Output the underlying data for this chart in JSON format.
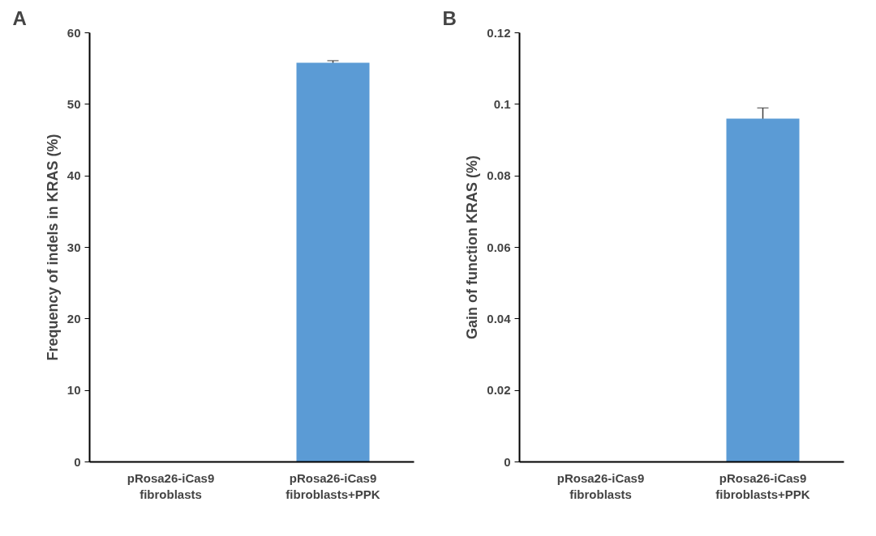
{
  "chart_data": [
    {
      "type": "bar",
      "title": "A",
      "ylabel": "Frequency of indels in KRAS (%)",
      "categories": [
        "pRosa26-iCas9\nfibroblasts",
        "pRosa26-iCas9\nfibroblasts+PPK"
      ],
      "values": [
        0,
        55.8
      ],
      "errors": [
        null,
        0.3
      ],
      "color": "#5b9bd5",
      "ylim": [
        0,
        60
      ],
      "yticks": [
        0,
        10,
        20,
        30,
        40,
        50,
        60
      ],
      "grid": false
    },
    {
      "type": "bar",
      "title": "B",
      "ylabel": "Gain of function KRAS (%)",
      "categories": [
        "pRosa26-iCas9\nfibroblasts",
        "pRosa26-iCas9\nfibroblasts+PPK"
      ],
      "values": [
        0,
        0.096
      ],
      "errors": [
        null,
        0.003
      ],
      "color": "#5b9bd5",
      "ylim": [
        0,
        0.12
      ],
      "yticks": [
        0,
        {
          "value": 0.02,
          "label": "0.02"
        },
        {
          "value": 0.04,
          "label": "0.04"
        },
        {
          "value": 0.06,
          "label": "0.06"
        },
        {
          "value": 0.08,
          "label": "0.08"
        },
        {
          "value": 0.1,
          "label": "0.1"
        },
        {
          "value": 0.12,
          "label": "0.12"
        }
      ],
      "grid": false
    }
  ]
}
